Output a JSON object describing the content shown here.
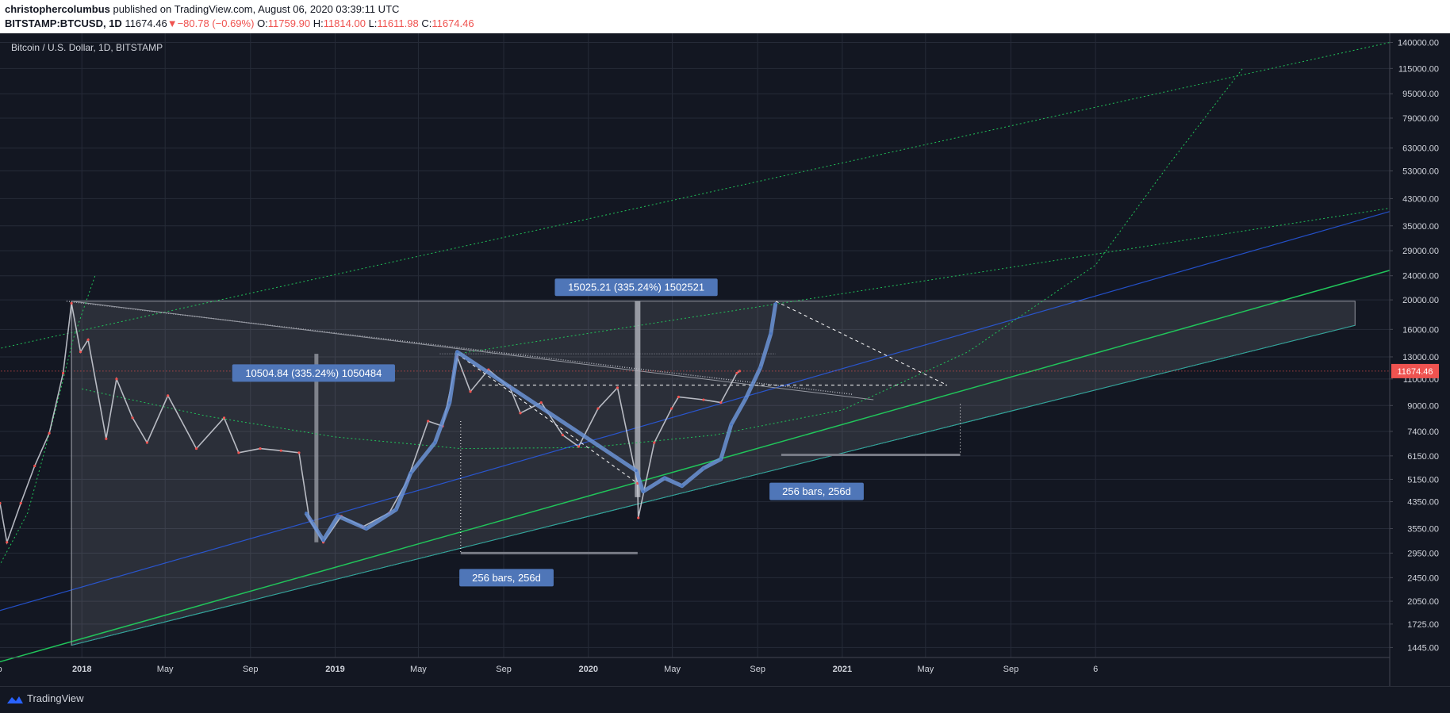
{
  "header": {
    "author": "christophercolumbus",
    "published": " published on TradingView.com, August 06, 2020 03:39:11 UTC",
    "symbol": "BITSTAMP:BTCUSD, 1D",
    "last": "11674.46",
    "change": "−80.78 (−0.69%)",
    "open_label": "O:",
    "open": "11759.90",
    "high_label": "H:",
    "high": "11814.00",
    "low_label": "L:",
    "low": "11611.98",
    "close_label": "C:",
    "close": "11674.46"
  },
  "footer": {
    "brand": "TradingView"
  },
  "chart_data": {
    "type": "candlestick",
    "title": "Bitcoin / U.S. Dollar, 1D, BITSTAMP",
    "y_scale": "log",
    "ylim": [
      1340,
      150000
    ],
    "y_ticks": [
      "140000.00",
      "115000.00",
      "95000.00",
      "79000.00",
      "63000.00",
      "53000.00",
      "43000.00",
      "35000.00",
      "29000.00",
      "24000.00",
      "20000.00",
      "16000.00",
      "13000.00",
      "11000.00",
      "9000.00",
      "7400.00",
      "6150.00",
      "5150.00",
      "4350.00",
      "3550.00",
      "2950.00",
      "2450.00",
      "2050.00",
      "1725.00",
      "1445.00"
    ],
    "last_price_label": "11674.46",
    "x_ticks": [
      "ep",
      "2018",
      "May",
      "Sep",
      "2019",
      "May",
      "Sep",
      "2020",
      "May",
      "Sep",
      "2021",
      "May",
      "Sep",
      "6"
    ],
    "xlim": [
      "2017-09-05",
      "2023-03-01"
    ],
    "price_series": [
      [
        "2017-09-05",
        4300
      ],
      [
        "2017-09-15",
        3200
      ],
      [
        "2017-10-05",
        4300
      ],
      [
        "2017-10-25",
        5700
      ],
      [
        "2017-11-15",
        7300
      ],
      [
        "2017-12-05",
        11500
      ],
      [
        "2017-12-17",
        19500
      ],
      [
        "2017-12-30",
        13500
      ],
      [
        "2018-01-10",
        14800
      ],
      [
        "2018-02-05",
        7000
      ],
      [
        "2018-02-20",
        11000
      ],
      [
        "2018-03-15",
        8200
      ],
      [
        "2018-04-05",
        6800
      ],
      [
        "2018-05-05",
        9700
      ],
      [
        "2018-06-15",
        6500
      ],
      [
        "2018-07-25",
        8200
      ],
      [
        "2018-08-15",
        6300
      ],
      [
        "2018-09-15",
        6500
      ],
      [
        "2018-10-15",
        6400
      ],
      [
        "2018-11-10",
        6300
      ],
      [
        "2018-11-25",
        3800
      ],
      [
        "2018-12-15",
        3200
      ],
      [
        "2019-01-10",
        3900
      ],
      [
        "2019-02-10",
        3600
      ],
      [
        "2019-03-20",
        4000
      ],
      [
        "2019-04-15",
        5100
      ],
      [
        "2019-05-15",
        8000
      ],
      [
        "2019-06-05",
        7700
      ],
      [
        "2019-06-26",
        13000
      ],
      [
        "2019-07-15",
        10000
      ],
      [
        "2019-08-10",
        11800
      ],
      [
        "2019-09-10",
        10300
      ],
      [
        "2019-09-25",
        8500
      ],
      [
        "2019-10-25",
        9200
      ],
      [
        "2019-11-25",
        7200
      ],
      [
        "2019-12-18",
        6600
      ],
      [
        "2020-01-15",
        8800
      ],
      [
        "2020-02-12",
        10300
      ],
      [
        "2020-03-12",
        5000
      ],
      [
        "2020-03-13",
        3850
      ],
      [
        "2020-04-05",
        6800
      ],
      [
        "2020-04-30",
        8800
      ],
      [
        "2020-05-10",
        9600
      ],
      [
        "2020-06-15",
        9400
      ],
      [
        "2020-07-10",
        9200
      ],
      [
        "2020-08-02",
        11500
      ],
      [
        "2020-08-06",
        11674
      ]
    ],
    "projection": [
      [
        "2018-11-20",
        4000
      ],
      [
        "2018-12-15",
        3250
      ],
      [
        "2019-01-05",
        3900
      ],
      [
        "2019-02-15",
        3550
      ],
      [
        "2019-03-30",
        4100
      ],
      [
        "2019-04-20",
        5400
      ],
      [
        "2019-05-25",
        6800
      ],
      [
        "2019-06-15",
        9200
      ],
      [
        "2019-06-26",
        13500
      ],
      [
        "2020-03-10",
        5500
      ],
      [
        "2020-03-20",
        4700
      ],
      [
        "2020-04-20",
        5200
      ],
      [
        "2020-05-15",
        4900
      ],
      [
        "2020-06-15",
        5600
      ],
      [
        "2020-07-10",
        6000
      ],
      [
        "2020-07-25",
        7800
      ],
      [
        "2020-08-15",
        9500
      ],
      [
        "2020-09-05",
        12000
      ],
      [
        "2020-09-20",
        15500
      ],
      [
        "2020-09-27",
        19500
      ]
    ],
    "annotations": [
      {
        "label": "10504.84 (335.24%) 1050484",
        "date": "2018-12-01",
        "price": 11500
      },
      {
        "label": "15025.21 (335.24%) 1502521",
        "date": "2020-03-10",
        "price": 22000
      },
      {
        "label": "256 bars, 256d",
        "date": "2019-09-05",
        "price": 2450
      },
      {
        "label": "256 bars, 256d",
        "date": "2020-11-25",
        "price": 4700
      }
    ]
  }
}
